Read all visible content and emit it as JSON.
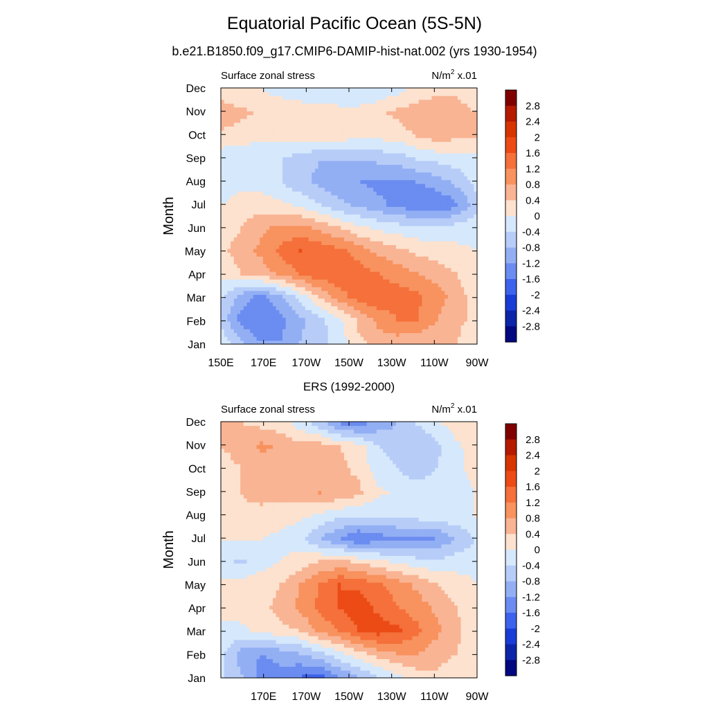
{
  "figure": {
    "title": "Equatorial Pacific Ocean (5S-5N)",
    "subtitle": "b.e21.B1850.f09_g17.CMIP6-DAMIP-hist-nat.002 (yrs 1930-1954)"
  },
  "colorbar": {
    "levels": [
      2.8,
      2.4,
      2,
      1.6,
      1.2,
      0.8,
      0.4,
      0,
      -0.4,
      -0.8,
      -1.2,
      -1.6,
      -2,
      -2.4,
      -2.8
    ],
    "colors": [
      "#800000",
      "#b51a00",
      "#d63500",
      "#ec4b16",
      "#f5703a",
      "#f8925e",
      "#f9b494",
      "#fce2cf",
      "#d6e8fb",
      "#b7cdf8",
      "#93aff4",
      "#6b8cf0",
      "#3d62ec",
      "#1a3cd6",
      "#0c25a8",
      "#020880"
    ]
  },
  "chart_data": [
    {
      "type": "heatmap",
      "title": "",
      "left_label": "Surface zonal stress",
      "right_label": "N/m",
      "units_exponent": "2",
      "units_suffix": " x.01",
      "ylabel": "Month",
      "xlabel": "",
      "x_ticks": [
        "150E",
        "170E",
        "170W",
        "150W",
        "130W",
        "110W",
        "90W"
      ],
      "x_lon": [
        150,
        170,
        190,
        210,
        230,
        250,
        270
      ],
      "xlim": [
        150,
        270
      ],
      "y_ticks": [
        "Jan",
        "Feb",
        "Mar",
        "Apr",
        "May",
        "Jun",
        "Jul",
        "Aug",
        "Sep",
        "Oct",
        "Nov",
        "Dec"
      ],
      "values": [
        [
          -0.2,
          -0.8,
          -1.2,
          -1.2,
          -0.8,
          -0.6,
          -0.2,
          0.3,
          0.6,
          0.6,
          0.5,
          0.5,
          0.4,
          0.0
        ],
        [
          -0.6,
          -1.4,
          -1.6,
          -1.3,
          -0.9,
          -0.5,
          -0.1,
          0.5,
          0.9,
          1.2,
          1.2,
          0.8,
          0.6,
          0.2
        ],
        [
          -0.4,
          -1.0,
          -1.3,
          -0.9,
          -0.2,
          0.4,
          1.0,
          1.4,
          1.5,
          1.4,
          1.3,
          1.0,
          0.6,
          0.2
        ],
        [
          0.2,
          0.4,
          0.6,
          0.9,
          1.2,
          1.5,
          1.5,
          1.4,
          1.2,
          1.0,
          0.8,
          0.6,
          0.4,
          0.1
        ],
        [
          0.3,
          0.6,
          0.9,
          1.3,
          1.6,
          1.5,
          1.3,
          1.0,
          0.7,
          0.5,
          0.3,
          0.2,
          0.1,
          0.0
        ],
        [
          0.2,
          0.4,
          0.7,
          0.9,
          0.9,
          0.7,
          0.4,
          0.1,
          -0.1,
          -0.2,
          -0.3,
          -0.3,
          -0.2,
          -0.1
        ],
        [
          0.0,
          0.2,
          0.2,
          0.1,
          -0.1,
          -0.4,
          -0.7,
          -0.9,
          -1.1,
          -1.3,
          -1.5,
          -1.6,
          -1.3,
          -0.6
        ],
        [
          -0.2,
          -0.1,
          -0.2,
          -0.4,
          -0.7,
          -0.9,
          -1.1,
          -1.2,
          -1.3,
          -1.3,
          -1.2,
          -1.0,
          -0.7,
          -0.3
        ],
        [
          -0.3,
          -0.3,
          -0.3,
          -0.4,
          -0.6,
          -0.8,
          -0.8,
          -0.8,
          -0.7,
          -0.6,
          -0.4,
          -0.3,
          -0.2,
          -0.1
        ],
        [
          0.3,
          0.2,
          0.1,
          0.1,
          0.2,
          0.2,
          0.2,
          0.1,
          0.1,
          0.2,
          0.4,
          0.6,
          0.5,
          0.4
        ],
        [
          0.6,
          0.5,
          0.3,
          0.2,
          0.2,
          0.2,
          0.2,
          0.2,
          0.3,
          0.5,
          0.7,
          0.7,
          0.6,
          0.4
        ],
        [
          0.2,
          0.1,
          0.0,
          -0.1,
          -0.2,
          -0.3,
          -0.4,
          -0.4,
          -0.3,
          -0.1,
          0.1,
          0.3,
          0.3,
          0.2
        ]
      ]
    },
    {
      "type": "heatmap",
      "title": "ERS (1992-2000)",
      "left_label": "Surface zonal stress",
      "right_label": "N/m",
      "units_exponent": "2",
      "units_suffix": " x.01",
      "ylabel": "Month",
      "xlabel": "",
      "x_ticks": [
        "170E",
        "170W",
        "150W",
        "130W",
        "110W",
        "90W"
      ],
      "x_lon": [
        170,
        190,
        210,
        230,
        250,
        270
      ],
      "xlim": [
        150,
        270
      ],
      "y_ticks": [
        "Jan",
        "Feb",
        "Mar",
        "Apr",
        "May",
        "Jun",
        "Jul",
        "Aug",
        "Sep",
        "Oct",
        "Nov",
        "Dec"
      ],
      "values": [
        [
          -0.4,
          -0.8,
          -1.4,
          -1.4,
          -1.6,
          -1.7,
          -1.2,
          -0.8,
          -0.4,
          -0.1,
          0.2,
          0.3,
          0.2,
          0.0
        ],
        [
          -0.3,
          -1.0,
          -1.2,
          -1.0,
          -0.8,
          -0.5,
          -0.1,
          0.3,
          0.6,
          0.8,
          0.8,
          0.6,
          0.4,
          0.1
        ],
        [
          -0.1,
          -0.1,
          0.1,
          0.3,
          0.4,
          0.9,
          1.2,
          1.6,
          1.8,
          1.7,
          1.3,
          0.9,
          0.5,
          0.2
        ],
        [
          0.1,
          0.2,
          0.3,
          0.5,
          0.9,
          1.3,
          1.6,
          1.8,
          1.5,
          1.2,
          1.0,
          0.7,
          0.4,
          0.1
        ],
        [
          0.1,
          0.2,
          0.3,
          0.4,
          0.8,
          1.2,
          1.6,
          1.5,
          1.3,
          1.0,
          0.7,
          0.4,
          0.2,
          0.0
        ],
        [
          -0.3,
          -0.5,
          -0.2,
          0.0,
          0.2,
          0.4,
          0.5,
          0.3,
          0.1,
          -0.1,
          -0.2,
          -0.3,
          -0.2,
          -0.1
        ],
        [
          0.0,
          0.1,
          0.0,
          -0.1,
          -0.3,
          -0.8,
          -1.2,
          -1.6,
          -1.4,
          -1.3,
          -1.4,
          -1.2,
          -0.8,
          -0.4
        ],
        [
          0.3,
          0.3,
          0.2,
          0.2,
          0.1,
          -0.1,
          -0.3,
          -0.4,
          -0.4,
          -0.3,
          -0.2,
          -0.2,
          -0.1,
          0.0
        ],
        [
          0.3,
          0.4,
          0.6,
          0.5,
          0.6,
          0.8,
          0.7,
          0.5,
          0.1,
          -0.1,
          -0.2,
          -0.2,
          -0.1,
          0.0
        ],
        [
          0.3,
          0.4,
          0.5,
          0.4,
          0.5,
          0.6,
          0.5,
          0.3,
          -0.2,
          -0.4,
          -0.6,
          -0.4,
          -0.1,
          0.1
        ],
        [
          0.4,
          0.5,
          0.9,
          0.7,
          0.6,
          0.6,
          0.4,
          0.2,
          -0.4,
          -0.6,
          -0.8,
          -0.5,
          -0.1,
          0.2
        ],
        [
          0.5,
          0.4,
          0.3,
          0.2,
          -0.2,
          -0.6,
          -1.2,
          -1.4,
          -1.0,
          -0.8,
          -0.4,
          -0.1,
          0.2,
          0.3
        ]
      ]
    }
  ]
}
